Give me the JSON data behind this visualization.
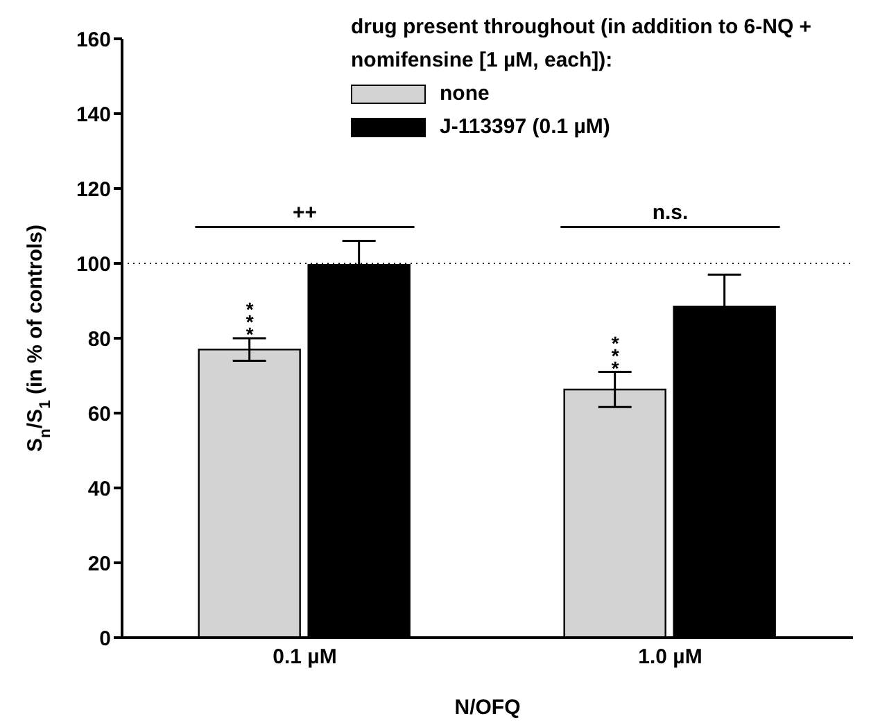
{
  "chart_data": {
    "type": "bar",
    "legend_title": "drug present throughout (in addition to 6-NQ + nomifensine [1 µM, each]):",
    "xlabel": "N/OFQ",
    "ylabel": "S$_{n}$/S$_{1}$ (in % of controls)",
    "categories": [
      "0.1 µM",
      "1.0 µM"
    ],
    "series": [
      {
        "name": "none",
        "color": "#d3d3d3",
        "values": [
          77,
          66.3
        ],
        "errors": [
          3,
          4.7
        ],
        "value_labels": [
          "***",
          "***"
        ]
      },
      {
        "name": "J-113397 (0.1 µM)",
        "color": "#000000",
        "values": [
          99.6,
          88.5
        ],
        "errors": [
          6.4,
          8.5
        ]
      }
    ],
    "ylim": [
      0,
      160
    ],
    "yticks": [
      0,
      20,
      40,
      60,
      80,
      100,
      120,
      140,
      160
    ],
    "ref_lines": [
      {
        "axis": "y",
        "value": 100,
        "line_style": "dotted",
        "color": "#000000"
      }
    ],
    "annotations": [
      "++",
      "n.s."
    ],
    "grid": false,
    "legend": "top"
  }
}
